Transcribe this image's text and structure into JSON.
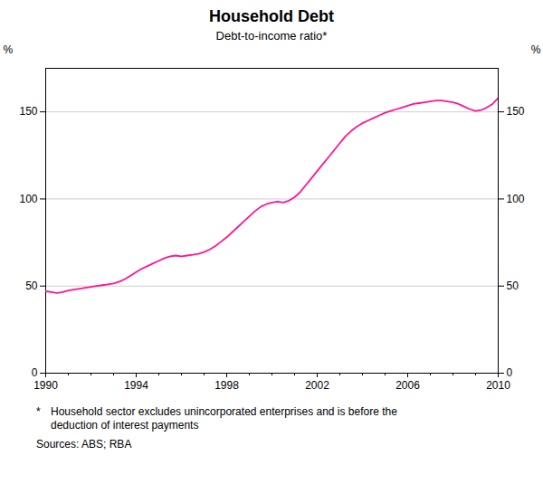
{
  "chart_data": {
    "type": "line",
    "title": "Household Debt",
    "subtitle": "Debt-to-income ratio*",
    "ylabel": "%",
    "y2label": "%",
    "footnote": {
      "marker": "*",
      "lines": [
        "Household sector excludes unincorporated enterprises and is before the",
        "deduction of interest payments"
      ]
    },
    "source": "Sources: ABS; RBA",
    "color": "#FF1493",
    "grid": true,
    "xlim": [
      1990,
      2010
    ],
    "xticks": [
      1990,
      1994,
      1998,
      2002,
      2006,
      2010
    ],
    "minor_xticks": [
      1990,
      1991,
      1992,
      1993,
      1994,
      1995,
      1996,
      1997,
      1998,
      1999,
      2000,
      2001,
      2002,
      2003,
      2004,
      2005,
      2006,
      2007,
      2008,
      2009,
      2010
    ],
    "ylim": [
      0,
      175
    ],
    "yticks": [
      0,
      50,
      100,
      150
    ],
    "y2lim": [
      0,
      175
    ],
    "y2ticks": [
      0,
      50,
      100,
      150
    ],
    "x": [
      1990.0,
      1990.25,
      1990.5,
      1990.75,
      1991.0,
      1991.25,
      1991.5,
      1991.75,
      1992.0,
      1992.25,
      1992.5,
      1992.75,
      1993.0,
      1993.25,
      1993.5,
      1993.75,
      1994.0,
      1994.25,
      1994.5,
      1994.75,
      1995.0,
      1995.25,
      1995.5,
      1995.75,
      1996.0,
      1996.25,
      1996.5,
      1996.75,
      1997.0,
      1997.25,
      1997.5,
      1997.75,
      1998.0,
      1998.25,
      1998.5,
      1998.75,
      1999.0,
      1999.25,
      1999.5,
      1999.75,
      2000.0,
      2000.25,
      2000.5,
      2000.75,
      2001.0,
      2001.25,
      2001.5,
      2001.75,
      2002.0,
      2002.25,
      2002.5,
      2002.75,
      2003.0,
      2003.25,
      2003.5,
      2003.75,
      2004.0,
      2004.25,
      2004.5,
      2004.75,
      2005.0,
      2005.25,
      2005.5,
      2005.75,
      2006.0,
      2006.25,
      2006.5,
      2006.75,
      2007.0,
      2007.25,
      2007.5,
      2007.75,
      2008.0,
      2008.25,
      2008.5,
      2008.75,
      2009.0,
      2009.25,
      2009.5,
      2009.75,
      2010.0
    ],
    "values": [
      47.0,
      46.5,
      46.0,
      46.5,
      47.5,
      48.0,
      48.5,
      49.0,
      49.5,
      50.0,
      50.5,
      51.0,
      51.5,
      52.5,
      54.0,
      56.0,
      58.0,
      60.0,
      61.5,
      63.0,
      64.5,
      66.0,
      67.0,
      67.5,
      67.0,
      67.5,
      68.0,
      68.5,
      69.5,
      71.0,
      73.0,
      75.5,
      78.0,
      81.0,
      84.0,
      87.0,
      90.0,
      93.0,
      95.5,
      97.0,
      98.0,
      98.5,
      98.0,
      99.0,
      101.0,
      104.0,
      108.0,
      112.0,
      116.0,
      120.0,
      124.0,
      128.0,
      132.0,
      136.0,
      139.0,
      141.5,
      143.5,
      145.0,
      146.5,
      148.0,
      149.5,
      150.5,
      151.5,
      152.5,
      153.5,
      154.5,
      155.0,
      155.5,
      156.0,
      156.5,
      156.5,
      156.0,
      155.5,
      154.5,
      153.0,
      151.5,
      150.5,
      151.0,
      152.5,
      154.5,
      158.0
    ]
  }
}
